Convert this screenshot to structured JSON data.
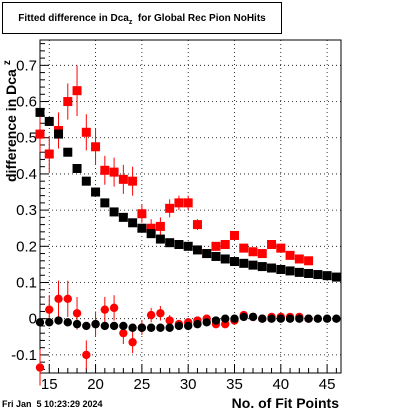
{
  "title": {
    "main": "Fitted difference in Dca",
    "subscript": "z",
    "rest": "  for Global Rec Pion NoHits"
  },
  "timestamp": "Fri Jan  5 10:23:29 2024",
  "chart_data": {
    "type": "scatter",
    "title": "Fitted difference in Dca_z for Global Rec Pion NoHits",
    "xlabel": "No. of Fit Points",
    "ylabel": "difference in Dca_z",
    "ylabel_parts": {
      "main": "difference in Dca",
      "subscript": "z"
    },
    "xlim": [
      14,
      46.5
    ],
    "ylim": [
      -0.15,
      0.77
    ],
    "xticks": [
      15,
      20,
      25,
      30,
      35,
      40,
      45
    ],
    "yticks": [
      -0.1,
      0,
      0.1,
      0.2,
      0.3,
      0.4,
      0.5,
      0.6,
      0.7
    ],
    "ytick_labels": [
      "-0.1",
      "0",
      "0.1",
      "0.2",
      "0.3",
      "0.4",
      "0.5",
      "0.6",
      "0.7"
    ],
    "grid": true,
    "series": [
      {
        "color": "#ff0000",
        "marker": "square",
        "points": [
          {
            "x": 14,
            "y": 0.51,
            "err": 0.05
          },
          {
            "x": 15,
            "y": 0.455,
            "err": 0.05
          },
          {
            "x": 16,
            "y": 0.52,
            "err": 0.05
          },
          {
            "x": 17,
            "y": 0.6,
            "err": 0.05
          },
          {
            "x": 18,
            "y": 0.63,
            "err": 0.07
          },
          {
            "x": 19,
            "y": 0.515,
            "err": 0.05
          },
          {
            "x": 20,
            "y": 0.475,
            "err": 0.05
          },
          {
            "x": 21,
            "y": 0.41,
            "err": 0.04
          },
          {
            "x": 22,
            "y": 0.405,
            "err": 0.04
          },
          {
            "x": 23,
            "y": 0.385,
            "err": 0.04
          },
          {
            "x": 24,
            "y": 0.38,
            "err": 0.04
          },
          {
            "x": 25,
            "y": 0.29,
            "err": 0.025
          },
          {
            "x": 26,
            "y": 0.25,
            "err": 0.025
          },
          {
            "x": 27,
            "y": 0.255,
            "err": 0.025
          },
          {
            "x": 28,
            "y": 0.305,
            "err": 0.025
          },
          {
            "x": 29,
            "y": 0.32,
            "err": 0.02
          },
          {
            "x": 30,
            "y": 0.32,
            "err": 0.02
          },
          {
            "x": 31,
            "y": 0.26,
            "err": 0.015
          },
          {
            "x": 32,
            "y": 0.18,
            "err": 0.012
          },
          {
            "x": 33,
            "y": 0.2,
            "err": 0.012
          },
          {
            "x": 34,
            "y": 0.205,
            "err": 0.01
          },
          {
            "x": 35,
            "y": 0.23,
            "err": 0.01
          },
          {
            "x": 36,
            "y": 0.195,
            "err": 0.01
          },
          {
            "x": 37,
            "y": 0.185,
            "err": 0.01
          },
          {
            "x": 38,
            "y": 0.18,
            "err": 0.01
          },
          {
            "x": 39,
            "y": 0.205,
            "err": 0.01
          },
          {
            "x": 40,
            "y": 0.195,
            "err": 0.01
          },
          {
            "x": 41,
            "y": 0.175,
            "err": 0.01
          },
          {
            "x": 42,
            "y": 0.165,
            "err": 0.008
          },
          {
            "x": 43,
            "y": 0.16,
            "err": 0.008
          }
        ]
      },
      {
        "color": "#ff0000",
        "marker": "circle",
        "points": [
          {
            "x": 14,
            "y": -0.135,
            "err": 0.05
          },
          {
            "x": 15,
            "y": 0.025,
            "err": 0.04
          },
          {
            "x": 16,
            "y": 0.055,
            "err": 0.05
          },
          {
            "x": 17,
            "y": 0.055,
            "err": 0.05
          },
          {
            "x": 18,
            "y": 0.015,
            "err": 0.045
          },
          {
            "x": 19,
            "y": -0.1,
            "err": 0.04
          },
          {
            "x": 20,
            "y": -0.015,
            "err": 0.035
          },
          {
            "x": 21,
            "y": 0.025,
            "err": 0.035
          },
          {
            "x": 22,
            "y": 0.03,
            "err": 0.035
          },
          {
            "x": 23,
            "y": -0.04,
            "err": 0.03
          },
          {
            "x": 24,
            "y": -0.065,
            "err": 0.03
          },
          {
            "x": 25,
            "y": -0.025,
            "err": 0.02
          },
          {
            "x": 26,
            "y": 0.01,
            "err": 0.02
          },
          {
            "x": 27,
            "y": 0.015,
            "err": 0.02
          },
          {
            "x": 28,
            "y": -0.005,
            "err": 0.015
          },
          {
            "x": 29,
            "y": -0.015,
            "err": 0.012
          },
          {
            "x": 30,
            "y": -0.01,
            "err": 0.012
          },
          {
            "x": 31,
            "y": -0.005,
            "err": 0.01
          },
          {
            "x": 32,
            "y": 0.0,
            "err": 0.01
          },
          {
            "x": 33,
            "y": -0.015,
            "err": 0.01
          },
          {
            "x": 34,
            "y": -0.015,
            "err": 0.008
          },
          {
            "x": 35,
            "y": -0.005,
            "err": 0.008
          },
          {
            "x": 36,
            "y": 0.01,
            "err": 0.008
          },
          {
            "x": 37,
            "y": 0.005,
            "err": 0.008
          },
          {
            "x": 38,
            "y": 0.0,
            "err": 0.008
          },
          {
            "x": 39,
            "y": 0.005,
            "err": 0.008
          },
          {
            "x": 40,
            "y": 0.005,
            "err": 0.008
          },
          {
            "x": 41,
            "y": 0.005,
            "err": 0.008
          },
          {
            "x": 42,
            "y": 0.005,
            "err": 0.008
          },
          {
            "x": 43,
            "y": 0.0,
            "err": 0.008
          }
        ]
      },
      {
        "color": "#000000",
        "marker": "square",
        "points": [
          {
            "x": 14,
            "y": 0.57
          },
          {
            "x": 15,
            "y": 0.545
          },
          {
            "x": 16,
            "y": 0.51
          },
          {
            "x": 17,
            "y": 0.46
          },
          {
            "x": 18,
            "y": 0.415
          },
          {
            "x": 19,
            "y": 0.38
          },
          {
            "x": 20,
            "y": 0.35
          },
          {
            "x": 21,
            "y": 0.32
          },
          {
            "x": 22,
            "y": 0.295
          },
          {
            "x": 23,
            "y": 0.28
          },
          {
            "x": 24,
            "y": 0.265
          },
          {
            "x": 25,
            "y": 0.25
          },
          {
            "x": 26,
            "y": 0.235
          },
          {
            "x": 27,
            "y": 0.22
          },
          {
            "x": 28,
            "y": 0.21
          },
          {
            "x": 29,
            "y": 0.205
          },
          {
            "x": 30,
            "y": 0.2
          },
          {
            "x": 31,
            "y": 0.19
          },
          {
            "x": 32,
            "y": 0.18
          },
          {
            "x": 33,
            "y": 0.172
          },
          {
            "x": 34,
            "y": 0.165
          },
          {
            "x": 35,
            "y": 0.158
          },
          {
            "x": 36,
            "y": 0.153
          },
          {
            "x": 37,
            "y": 0.148
          },
          {
            "x": 38,
            "y": 0.144
          },
          {
            "x": 39,
            "y": 0.14
          },
          {
            "x": 40,
            "y": 0.136
          },
          {
            "x": 41,
            "y": 0.132
          },
          {
            "x": 42,
            "y": 0.128
          },
          {
            "x": 43,
            "y": 0.125
          },
          {
            "x": 44,
            "y": 0.122
          },
          {
            "x": 45,
            "y": 0.119
          },
          {
            "x": 46,
            "y": 0.115
          }
        ]
      },
      {
        "color": "#000000",
        "marker": "circle",
        "points": [
          {
            "x": 14,
            "y": -0.01
          },
          {
            "x": 15,
            "y": -0.01
          },
          {
            "x": 16,
            "y": -0.005
          },
          {
            "x": 17,
            "y": -0.01
          },
          {
            "x": 18,
            "y": -0.015
          },
          {
            "x": 19,
            "y": -0.02
          },
          {
            "x": 20,
            "y": -0.015
          },
          {
            "x": 21,
            "y": -0.02
          },
          {
            "x": 22,
            "y": -0.02
          },
          {
            "x": 23,
            "y": -0.02
          },
          {
            "x": 24,
            "y": -0.025
          },
          {
            "x": 25,
            "y": -0.025
          },
          {
            "x": 26,
            "y": -0.025
          },
          {
            "x": 27,
            "y": -0.025
          },
          {
            "x": 28,
            "y": -0.025
          },
          {
            "x": 29,
            "y": -0.02
          },
          {
            "x": 30,
            "y": -0.02
          },
          {
            "x": 31,
            "y": -0.015
          },
          {
            "x": 32,
            "y": -0.01
          },
          {
            "x": 33,
            "y": -0.005
          },
          {
            "x": 34,
            "y": 0.0
          },
          {
            "x": 35,
            "y": 0.0
          },
          {
            "x": 36,
            "y": 0.005
          },
          {
            "x": 37,
            "y": 0.005
          },
          {
            "x": 38,
            "y": 0.0
          },
          {
            "x": 39,
            "y": 0.0
          },
          {
            "x": 40,
            "y": 0.0
          },
          {
            "x": 41,
            "y": 0.0
          },
          {
            "x": 42,
            "y": 0.0
          },
          {
            "x": 43,
            "y": 0.0
          },
          {
            "x": 44,
            "y": 0.0
          },
          {
            "x": 45,
            "y": 0.0
          },
          {
            "x": 46,
            "y": 0.0
          }
        ]
      }
    ]
  }
}
